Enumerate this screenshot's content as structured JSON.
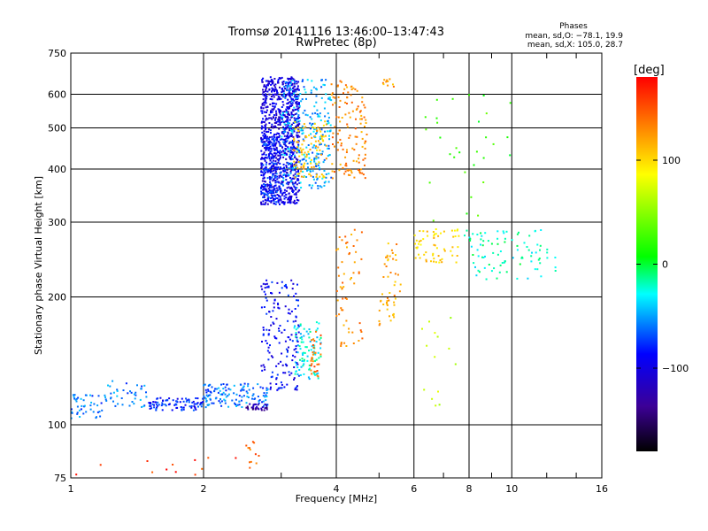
{
  "header": {
    "title": "Tromsø 20141116 13:46:00–13:47:43",
    "subtitle": "RwPretec (8p)"
  },
  "stats": {
    "heading": "Phases",
    "line1": "mean, sd,O: −78.1, 19.9",
    "line2": "mean, sd,X: 105.0, 28.7"
  },
  "chart_data": {
    "type": "scatter",
    "title": "Tromsø 20141116 13:46:00–13:47:43",
    "subtitle": "RwPretec (8p)",
    "xlabel": "Frequency [MHz]",
    "ylabel": "Stationary phase Virtual Height [km]",
    "x_scale": "log",
    "y_scale": "log",
    "xlim": [
      1,
      16
    ],
    "ylim": [
      75,
      750
    ],
    "x_ticks": [
      1,
      2,
      4,
      6,
      8,
      10,
      16
    ],
    "x_minor_ticks": [
      3,
      5,
      7,
      9,
      12,
      14
    ],
    "y_ticks": [
      75,
      100,
      200,
      300,
      400,
      500,
      600,
      750
    ],
    "grid": true,
    "colorbar": {
      "label": "[deg]",
      "range": [
        -180,
        180
      ],
      "ticks": [
        -100,
        0,
        100
      ]
    },
    "clusters": [
      {
        "x": [
          2.7,
          3.3
        ],
        "y": [
          330,
          660
        ],
        "n": 900,
        "phase": -100
      },
      {
        "x": [
          2.7,
          3.0
        ],
        "y": [
          330,
          480
        ],
        "n": 160,
        "phase": -80
      },
      {
        "x": [
          3.0,
          3.9
        ],
        "y": [
          360,
          650
        ],
        "n": 280,
        "phase": -50
      },
      {
        "x": [
          3.2,
          3.8
        ],
        "y": [
          380,
          520
        ],
        "n": 100,
        "phase": 110
      },
      {
        "x": [
          3.9,
          4.7
        ],
        "y": [
          380,
          650
        ],
        "n": 130,
        "phase": 130
      },
      {
        "x": [
          5.1,
          5.4
        ],
        "y": [
          620,
          660
        ],
        "n": 10,
        "phase": 120
      },
      {
        "x": [
          1.0,
          1.2
        ],
        "y": [
          103,
          118
        ],
        "n": 45,
        "phase": -60
      },
      {
        "x": [
          1.2,
          1.5
        ],
        "y": [
          110,
          128
        ],
        "n": 40,
        "phase": -60
      },
      {
        "x": [
          1.5,
          2.0
        ],
        "y": [
          108,
          116
        ],
        "n": 90,
        "phase": -80
      },
      {
        "x": [
          2.0,
          2.8
        ],
        "y": [
          110,
          125
        ],
        "n": 130,
        "phase": -60
      },
      {
        "x": [
          2.5,
          2.8
        ],
        "y": [
          108,
          112
        ],
        "n": 30,
        "phase": -130
      },
      {
        "x": [
          2.7,
          3.3
        ],
        "y": [
          120,
          220
        ],
        "n": 170,
        "phase": -90
      },
      {
        "x": [
          3.2,
          3.7
        ],
        "y": [
          128,
          175
        ],
        "n": 90,
        "phase": -30
      },
      {
        "x": [
          3.5,
          3.7
        ],
        "y": [
          130,
          170
        ],
        "n": 30,
        "phase": 140
      },
      {
        "x": [
          4.0,
          4.6
        ],
        "y": [
          150,
          290
        ],
        "n": 60,
        "phase": 130
      },
      {
        "x": [
          5.0,
          5.6
        ],
        "y": [
          170,
          270
        ],
        "n": 50,
        "phase": 120
      },
      {
        "x": [
          6.0,
          7.6
        ],
        "y": [
          240,
          290
        ],
        "n": 60,
        "phase": 100
      },
      {
        "x": [
          7.8,
          12.7
        ],
        "y": [
          220,
          290
        ],
        "n": 90,
        "phase": -20
      },
      {
        "x": [
          6.0,
          10.0
        ],
        "y": [
          300,
          600
        ],
        "n": 30,
        "phase": 20
      },
      {
        "x": [
          1.0,
          2.6
        ],
        "y": [
          76,
          84
        ],
        "n": 12,
        "phase": 160
      },
      {
        "x": [
          2.5,
          2.7
        ],
        "y": [
          78,
          92
        ],
        "n": 12,
        "phase": 140
      },
      {
        "x": [
          6.2,
          7.5
        ],
        "y": [
          110,
          180
        ],
        "n": 14,
        "phase": 60
      }
    ]
  }
}
